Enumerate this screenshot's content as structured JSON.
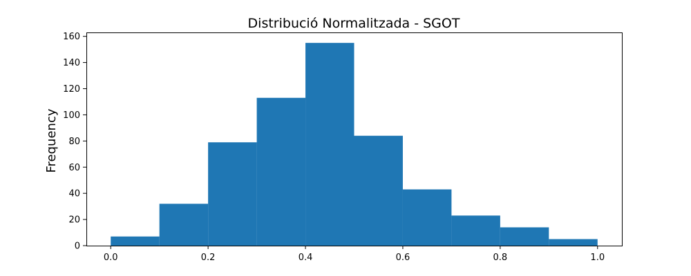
{
  "chart_data": {
    "type": "bar",
    "title": "Distribució Normalitzada - SGOT",
    "xlabel": "",
    "ylabel": "Frequency",
    "bin_edges": [
      0.0,
      0.1,
      0.2,
      0.3,
      0.4,
      0.5,
      0.6,
      0.7,
      0.8,
      0.9,
      1.0
    ],
    "values": [
      7,
      32,
      79,
      113,
      155,
      84,
      43,
      23,
      14,
      5
    ],
    "xlim": [
      -0.05,
      1.05
    ],
    "ylim": [
      0,
      163
    ],
    "x_ticks": [
      0.0,
      0.2,
      0.4,
      0.6,
      0.8,
      1.0
    ],
    "x_tick_labels": [
      "0.0",
      "0.2",
      "0.4",
      "0.6",
      "0.8",
      "1.0"
    ],
    "y_ticks": [
      0,
      20,
      40,
      60,
      80,
      100,
      120,
      140,
      160
    ],
    "y_tick_labels": [
      "0",
      "20",
      "40",
      "60",
      "80",
      "100",
      "120",
      "140",
      "160"
    ],
    "bar_color": "#1f77b4",
    "grid": false,
    "legend": "none"
  }
}
